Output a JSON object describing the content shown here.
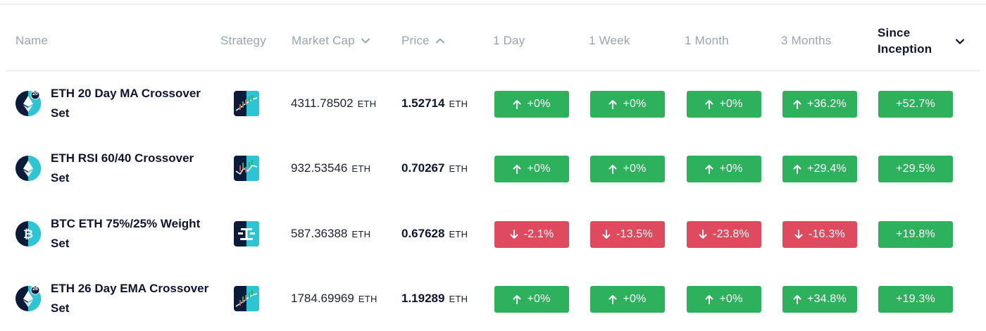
{
  "header": {
    "name": "Name",
    "strategy": "Strategy",
    "market_cap": "Market Cap",
    "price": "Price",
    "day1": "1 Day",
    "week1": "1 Week",
    "month1": "1 Month",
    "month3": "3 Months",
    "since_inception": "Since Inception"
  },
  "colors": {
    "positive": "#2eb15c",
    "negative": "#e04a5f",
    "text_primary": "#0f1432",
    "text_muted": "#9aa3b2"
  },
  "rows": [
    {
      "name": "ETH 20 Day MA Crossover Set",
      "coin_icon": "eth-20-day-icon",
      "coin_badge": "20",
      "strategy_icon": "ma-chart-strategy-icon",
      "market_cap": "4311.78502",
      "market_cap_unit": "ETH",
      "price": "1.52714",
      "price_unit": "ETH",
      "day1": "+0%",
      "week1": "+0%",
      "month1": "+0%",
      "month3": "+36.2%",
      "since_inception": "+52.7%"
    },
    {
      "name": "ETH RSI 60/40 Crossover Set",
      "coin_icon": "eth-icon",
      "coin_badge": "",
      "strategy_icon": "rsi-chart-strategy-icon",
      "market_cap": "932.53546",
      "market_cap_unit": "ETH",
      "price": "0.70267",
      "price_unit": "ETH",
      "day1": "+0%",
      "week1": "+0%",
      "month1": "+0%",
      "month3": "+29.4%",
      "since_inception": "+29.5%"
    },
    {
      "name": "BTC ETH 75%/25% Weight Set",
      "coin_icon": "btc-eth-icon",
      "coin_badge": "",
      "strategy_icon": "weight-scale-strategy-icon",
      "market_cap": "587.36388",
      "market_cap_unit": "ETH",
      "price": "0.67628",
      "price_unit": "ETH",
      "day1": "-2.1%",
      "week1": "-13.5%",
      "month1": "-23.8%",
      "month3": "-16.3%",
      "since_inception": "+19.8%"
    },
    {
      "name": "ETH 26 Day EMA Crossover Set",
      "coin_icon": "eth-26-day-icon",
      "coin_badge": "26",
      "strategy_icon": "ema-chart-strategy-icon",
      "market_cap": "1784.69969",
      "market_cap_unit": "ETH",
      "price": "1.19289",
      "price_unit": "ETH",
      "day1": "+0%",
      "week1": "+0%",
      "month1": "+0%",
      "month3": "+34.8%",
      "since_inception": "+19.3%"
    }
  ]
}
